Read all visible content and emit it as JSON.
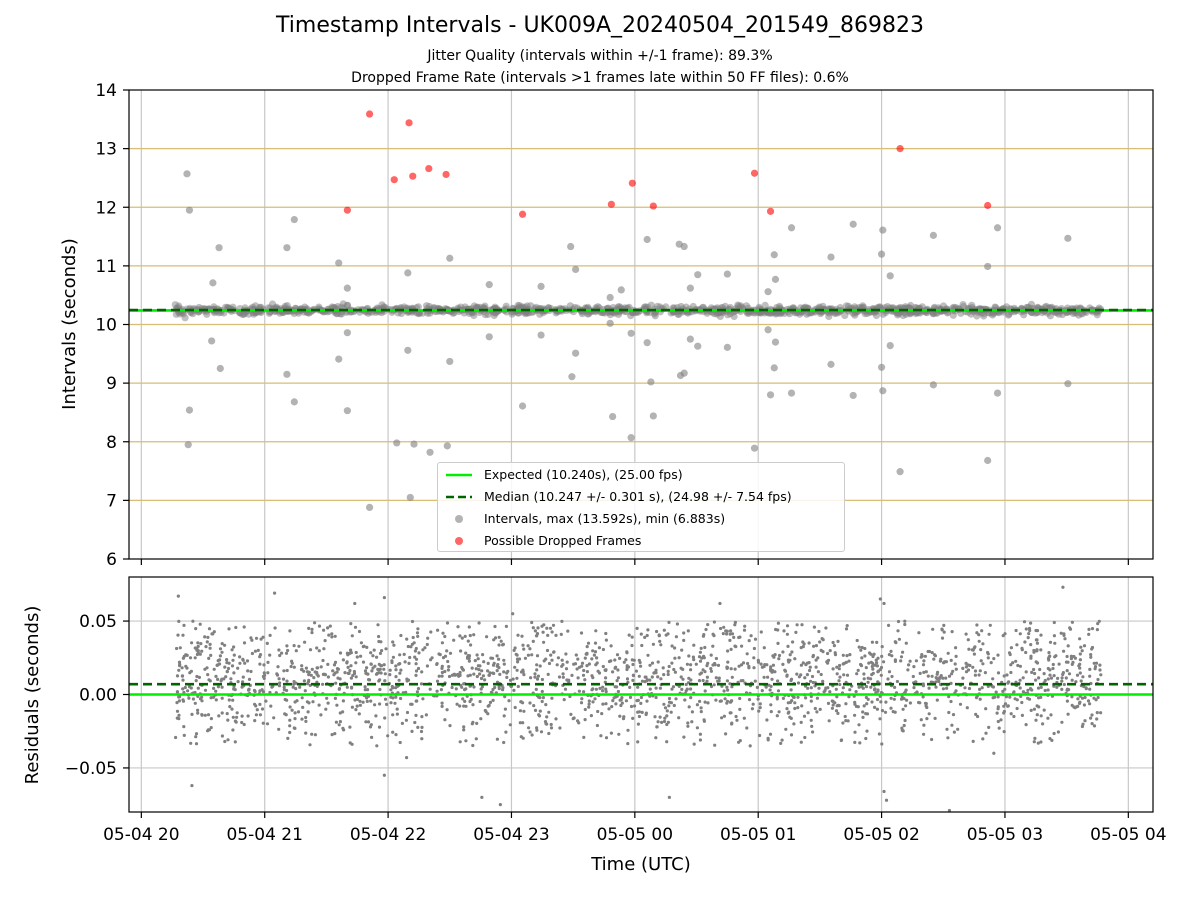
{
  "figure": {
    "title": "Timestamp Intervals - UK009A_20240504_201549_869823",
    "subtitle_jitter": "Jitter Quality (intervals within +/-1 frame): 89.3%",
    "subtitle_dropped": "Dropped Frame Rate (intervals >1 frames late within 50 FF files): 0.6%"
  },
  "chart_data": [
    {
      "type": "scatter",
      "panel": "top",
      "xlabel": "",
      "ylabel": "Intervals (seconds)",
      "ylim": [
        6,
        14
      ],
      "yticks": [
        6,
        7,
        8,
        9,
        10,
        11,
        12,
        13,
        14
      ],
      "xlim_hours": [
        19.9,
        28.2
      ],
      "grid": true,
      "hlines": [
        {
          "name": "Expected",
          "y": 10.24,
          "style": "solid",
          "color": "#00ee00"
        },
        {
          "name": "Median",
          "y": 10.247,
          "style": "dashed",
          "color": "#006400"
        }
      ],
      "legend": {
        "placement": "lower center",
        "entries": [
          {
            "label": "Expected (10.240s), (25.00 fps)",
            "kind": "line",
            "color": "#00ee00"
          },
          {
            "label": "Median (10.247 +/- 0.301 s), (24.98 +/- 7.54 fps)",
            "kind": "dashed",
            "color": "#006400"
          },
          {
            "label": "Intervals, max (13.592s), min (6.883s)",
            "kind": "marker",
            "color": "#808080"
          },
          {
            "label": "Possible Dropped Frames",
            "kind": "marker",
            "color": "#ff0000"
          }
        ]
      },
      "series": [
        {
          "name": "Possible Dropped Frames",
          "color": "#ff0000",
          "points": [
            [
              21.67,
              11.95
            ],
            [
              21.85,
              13.59
            ],
            [
              22.05,
              12.47
            ],
            [
              22.17,
              13.44
            ],
            [
              22.2,
              12.53
            ],
            [
              22.33,
              12.66
            ],
            [
              22.47,
              12.56
            ],
            [
              23.09,
              11.88
            ],
            [
              23.81,
              12.05
            ],
            [
              23.98,
              12.41
            ],
            [
              24.15,
              12.02
            ],
            [
              24.97,
              12.58
            ],
            [
              25.1,
              11.93
            ],
            [
              26.15,
              13.0
            ],
            [
              26.86,
              12.03
            ]
          ]
        },
        {
          "name": "Intervals",
          "color": "#808080",
          "outliers": [
            [
              20.37,
              12.57
            ],
            [
              20.39,
              11.95
            ],
            [
              20.39,
              8.54
            ],
            [
              20.38,
              7.95
            ],
            [
              20.58,
              10.71
            ],
            [
              20.57,
              9.72
            ],
            [
              20.63,
              11.31
            ],
            [
              20.64,
              9.25
            ],
            [
              21.18,
              11.31
            ],
            [
              21.18,
              9.15
            ],
            [
              21.24,
              11.79
            ],
            [
              21.24,
              8.68
            ],
            [
              21.6,
              11.05
            ],
            [
              21.6,
              9.41
            ],
            [
              21.67,
              10.62
            ],
            [
              21.67,
              9.86
            ],
            [
              21.67,
              8.53
            ],
            [
              21.85,
              6.88
            ],
            [
              22.07,
              7.98
            ],
            [
              22.16,
              10.88
            ],
            [
              22.16,
              9.56
            ],
            [
              22.18,
              7.05
            ],
            [
              22.21,
              7.96
            ],
            [
              22.34,
              7.82
            ],
            [
              22.48,
              7.93
            ],
            [
              22.5,
              11.13
            ],
            [
              22.5,
              9.37
            ],
            [
              22.82,
              10.68
            ],
            [
              22.82,
              9.79
            ],
            [
              23.09,
              8.61
            ],
            [
              23.24,
              10.65
            ],
            [
              23.24,
              9.82
            ],
            [
              23.48,
              11.33
            ],
            [
              23.49,
              9.11
            ],
            [
              23.52,
              10.94
            ],
            [
              23.52,
              9.51
            ],
            [
              23.8,
              10.46
            ],
            [
              23.8,
              10.02
            ],
            [
              23.82,
              8.43
            ],
            [
              23.89,
              10.59
            ],
            [
              23.97,
              9.85
            ],
            [
              23.97,
              8.07
            ],
            [
              24.1,
              11.45
            ],
            [
              24.1,
              9.69
            ],
            [
              24.13,
              9.02
            ],
            [
              24.15,
              8.44
            ],
            [
              24.36,
              11.37
            ],
            [
              24.37,
              9.13
            ],
            [
              24.4,
              11.33
            ],
            [
              24.4,
              9.17
            ],
            [
              24.45,
              10.62
            ],
            [
              24.45,
              9.75
            ],
            [
              24.51,
              10.85
            ],
            [
              24.51,
              9.63
            ],
            [
              24.75,
              10.86
            ],
            [
              24.75,
              9.61
            ],
            [
              24.97,
              7.89
            ],
            [
              25.08,
              10.56
            ],
            [
              25.08,
              9.91
            ],
            [
              25.13,
              11.19
            ],
            [
              25.13,
              9.26
            ],
            [
              25.14,
              10.77
            ],
            [
              25.14,
              9.7
            ],
            [
              25.27,
              11.65
            ],
            [
              25.27,
              8.83
            ],
            [
              25.1,
              8.8
            ],
            [
              25.59,
              11.15
            ],
            [
              25.59,
              9.32
            ],
            [
              25.77,
              11.71
            ],
            [
              25.77,
              8.79
            ],
            [
              26.0,
              11.2
            ],
            [
              26.0,
              9.27
            ],
            [
              26.01,
              11.61
            ],
            [
              26.01,
              8.87
            ],
            [
              26.07,
              10.83
            ],
            [
              26.07,
              9.64
            ],
            [
              26.15,
              7.49
            ],
            [
              26.42,
              11.52
            ],
            [
              26.42,
              8.97
            ],
            [
              26.86,
              10.99
            ],
            [
              26.86,
              7.68
            ],
            [
              26.94,
              11.65
            ],
            [
              26.94,
              8.83
            ],
            [
              27.51,
              11.47
            ],
            [
              27.51,
              8.99
            ]
          ],
          "band": {
            "x_range": [
              20.27,
              27.78
            ],
            "center": 10.24,
            "spread": 0.08
          }
        }
      ]
    },
    {
      "type": "scatter",
      "panel": "bottom",
      "xlabel": "Time (UTC)",
      "ylabel": "Residuals (seconds)",
      "ylim": [
        -0.08,
        0.08
      ],
      "yticks": [
        {
          "value": 0.05,
          "label": "0.05"
        },
        {
          "value": 0.0,
          "label": "0.00"
        },
        {
          "value": -0.05,
          "label": "−0.05"
        }
      ],
      "xlim_hours": [
        19.9,
        28.2
      ],
      "xticks": [
        {
          "hour": 20,
          "label": "05-04 20"
        },
        {
          "hour": 21,
          "label": "05-04 21"
        },
        {
          "hour": 22,
          "label": "05-04 22"
        },
        {
          "hour": 23,
          "label": "05-04 23"
        },
        {
          "hour": 24,
          "label": "05-05 00"
        },
        {
          "hour": 25,
          "label": "05-05 01"
        },
        {
          "hour": 26,
          "label": "05-05 02"
        },
        {
          "hour": 27,
          "label": "05-05 03"
        },
        {
          "hour": 28,
          "label": "05-05 04"
        }
      ],
      "grid": true,
      "hlines": [
        {
          "name": "Expected",
          "y": 0.0,
          "style": "solid",
          "color": "#00ee00"
        },
        {
          "name": "Median",
          "y": 0.007,
          "style": "dashed",
          "color": "#006400"
        }
      ],
      "series": [
        {
          "name": "Residuals",
          "color": "#808080",
          "x_range": [
            20.27,
            27.78
          ],
          "center": 0.01,
          "spread": 0.02,
          "outliers": [
            [
              20.41,
              -0.062
            ],
            [
              20.3,
              0.067
            ],
            [
              21.08,
              0.069
            ],
            [
              21.73,
              0.062
            ],
            [
              21.97,
              0.066
            ],
            [
              21.97,
              -0.055
            ],
            [
              22.15,
              -0.043
            ],
            [
              22.76,
              -0.07
            ],
            [
              22.91,
              -0.075
            ],
            [
              23.01,
              0.055
            ],
            [
              24.28,
              -0.07
            ],
            [
              24.69,
              0.062
            ],
            [
              25.99,
              0.065
            ],
            [
              26.02,
              0.062
            ],
            [
              26.02,
              -0.066
            ],
            [
              26.04,
              -0.072
            ],
            [
              26.55,
              -0.079
            ],
            [
              27.47,
              0.073
            ],
            [
              26.91,
              -0.04
            ]
          ]
        }
      ]
    }
  ]
}
